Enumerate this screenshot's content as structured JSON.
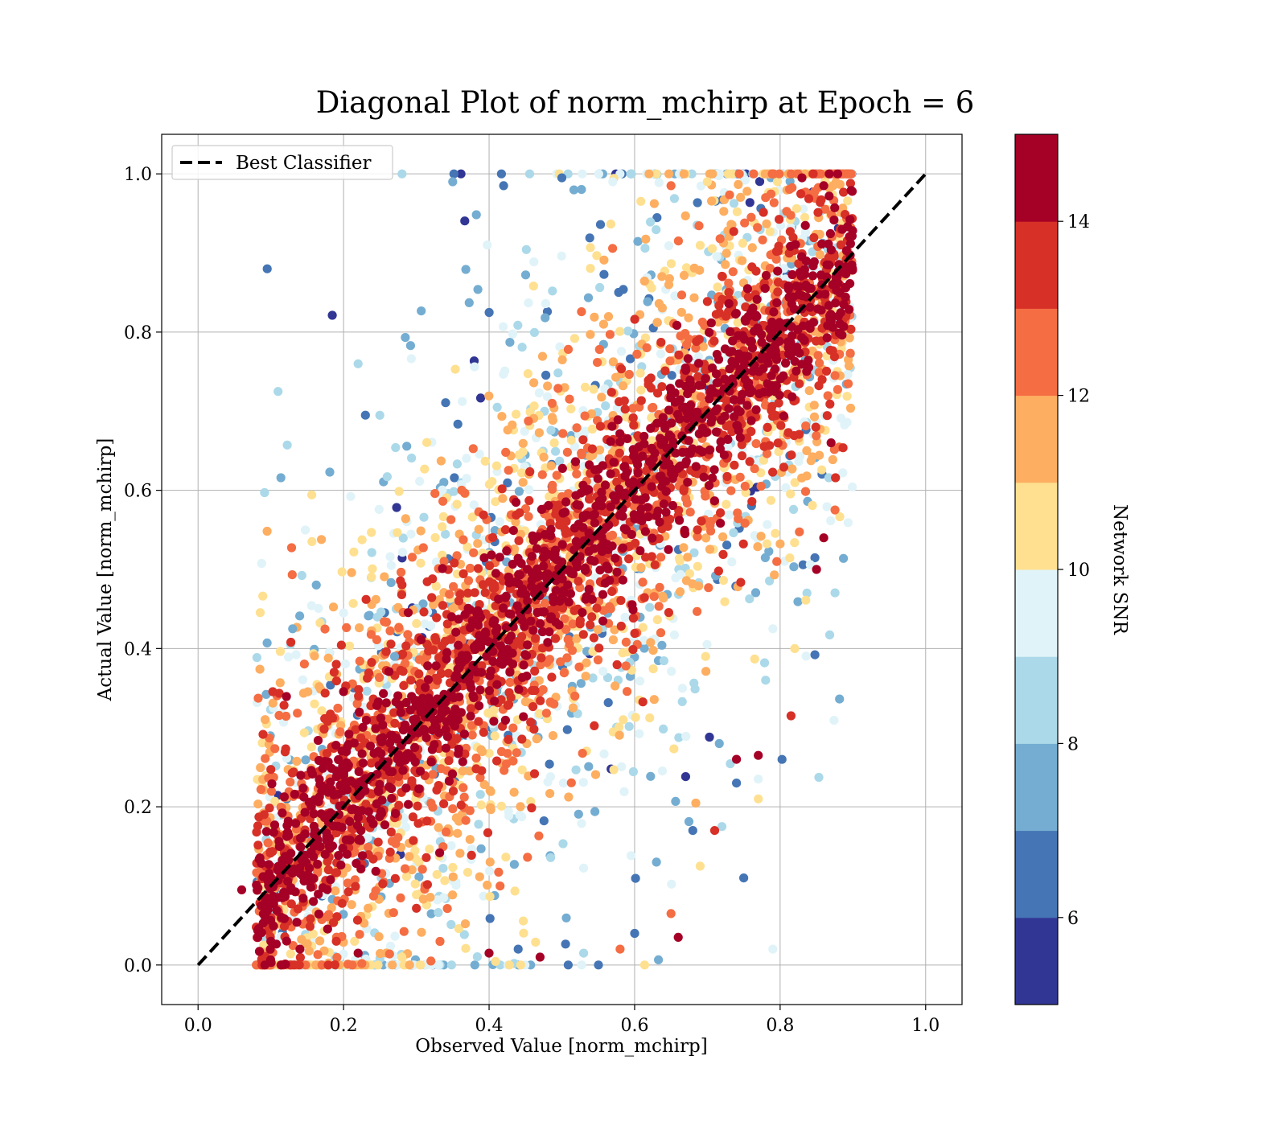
{
  "chart_data": {
    "type": "scatter",
    "title": "Diagonal Plot of norm_mchirp at Epoch = 6",
    "xlabel": "Observed Value [norm_mchirp]",
    "ylabel": "Actual Value [norm_mchirp]",
    "xlim": [
      -0.05,
      1.05
    ],
    "ylim": [
      -0.05,
      1.05
    ],
    "xticks": [
      "0.0",
      "0.2",
      "0.4",
      "0.6",
      "0.8",
      "1.0"
    ],
    "yticks": [
      "0.0",
      "0.2",
      "0.4",
      "0.6",
      "0.8",
      "1.0"
    ],
    "grid": true,
    "legend": {
      "position": "top-left",
      "entries": [
        "Best Classifier"
      ]
    },
    "reference_line": {
      "label": "Best Classifier",
      "x": [
        0,
        1
      ],
      "y": [
        0,
        1
      ],
      "style": "dashed",
      "color": "#000000"
    },
    "colorbar": {
      "label": "Network SNR",
      "range": [
        5,
        15
      ],
      "ticks": [
        "6",
        "8",
        "10",
        "12",
        "14"
      ],
      "tick_values": [
        6,
        8,
        10,
        12,
        14
      ],
      "colors": [
        "#313695",
        "#4575b4",
        "#74add1",
        "#abd9e9",
        "#e0f3f8",
        "#fee090",
        "#fdae61",
        "#f46d43",
        "#d73027",
        "#a50026"
      ]
    },
    "scatter_summary": {
      "x_range": [
        0.05,
        0.9
      ],
      "y_range": [
        0.0,
        1.0
      ],
      "trend": "points cluster along y = x; higher SNR points lie close to the diagonal, lower SNR points scatter further away"
    },
    "points": [
      [
        0.095,
        0.88,
        6.0
      ],
      [
        0.11,
        0.725,
        8.5
      ],
      [
        0.13,
        0.425,
        7.0
      ],
      [
        0.2,
        0.445,
        9.0
      ],
      [
        0.22,
        0.76,
        8.5
      ],
      [
        0.23,
        0.695,
        6.0
      ],
      [
        0.27,
        0.39,
        7.5
      ],
      [
        0.19,
        0.38,
        13.0
      ],
      [
        0.16,
        0.33,
        10.5
      ],
      [
        0.35,
        0.99,
        7.0
      ],
      [
        0.42,
        0.985,
        6.0
      ],
      [
        0.5,
        0.995,
        6.5
      ],
      [
        0.57,
        0.99,
        9.0
      ],
      [
        0.65,
        0.985,
        12.0
      ],
      [
        0.7,
        0.99,
        10.0
      ],
      [
        0.78,
        0.97,
        12.5
      ],
      [
        0.83,
        0.995,
        14.5
      ],
      [
        0.86,
        0.985,
        15.0
      ],
      [
        0.89,
        0.88,
        15.0
      ],
      [
        0.88,
        0.82,
        15.0
      ],
      [
        0.87,
        0.66,
        15.0
      ],
      [
        0.85,
        0.5,
        15.0
      ],
      [
        0.86,
        0.54,
        14.5
      ],
      [
        0.82,
        0.4,
        10.0
      ],
      [
        0.815,
        0.315,
        13.0
      ],
      [
        0.79,
        0.425,
        9.5
      ],
      [
        0.78,
        0.36,
        8.0
      ],
      [
        0.77,
        0.265,
        15.0
      ],
      [
        0.77,
        0.235,
        9.0
      ],
      [
        0.74,
        0.26,
        15.0
      ],
      [
        0.74,
        0.23,
        6.0
      ],
      [
        0.77,
        0.21,
        10.5
      ],
      [
        0.75,
        0.11,
        6.5
      ],
      [
        0.72,
        0.175,
        8.0
      ],
      [
        0.71,
        0.17,
        13.5
      ],
      [
        0.69,
        0.125,
        10.0
      ],
      [
        0.65,
        0.065,
        12.0
      ],
      [
        0.66,
        0.035,
        14.0
      ],
      [
        0.6,
        0.04,
        6.0
      ],
      [
        0.58,
        0.02,
        12.5
      ],
      [
        0.53,
        0.015,
        8.5
      ],
      [
        0.47,
        0.01,
        15.0
      ],
      [
        0.44,
        0.02,
        6.5
      ],
      [
        0.4,
        0.015,
        14.0
      ],
      [
        0.32,
        0.005,
        12.0
      ],
      [
        0.28,
        0.01,
        10.5
      ],
      [
        0.22,
        0.015,
        15.0
      ],
      [
        0.19,
        0.03,
        13.5
      ],
      [
        0.14,
        0.02,
        15.0
      ],
      [
        0.1,
        0.03,
        15.0
      ],
      [
        0.06,
        0.095,
        15.0
      ],
      [
        0.79,
        0.02,
        9.5
      ],
      [
        0.63,
        0.13,
        7.0
      ],
      [
        0.68,
        0.17,
        6.0
      ]
    ]
  }
}
